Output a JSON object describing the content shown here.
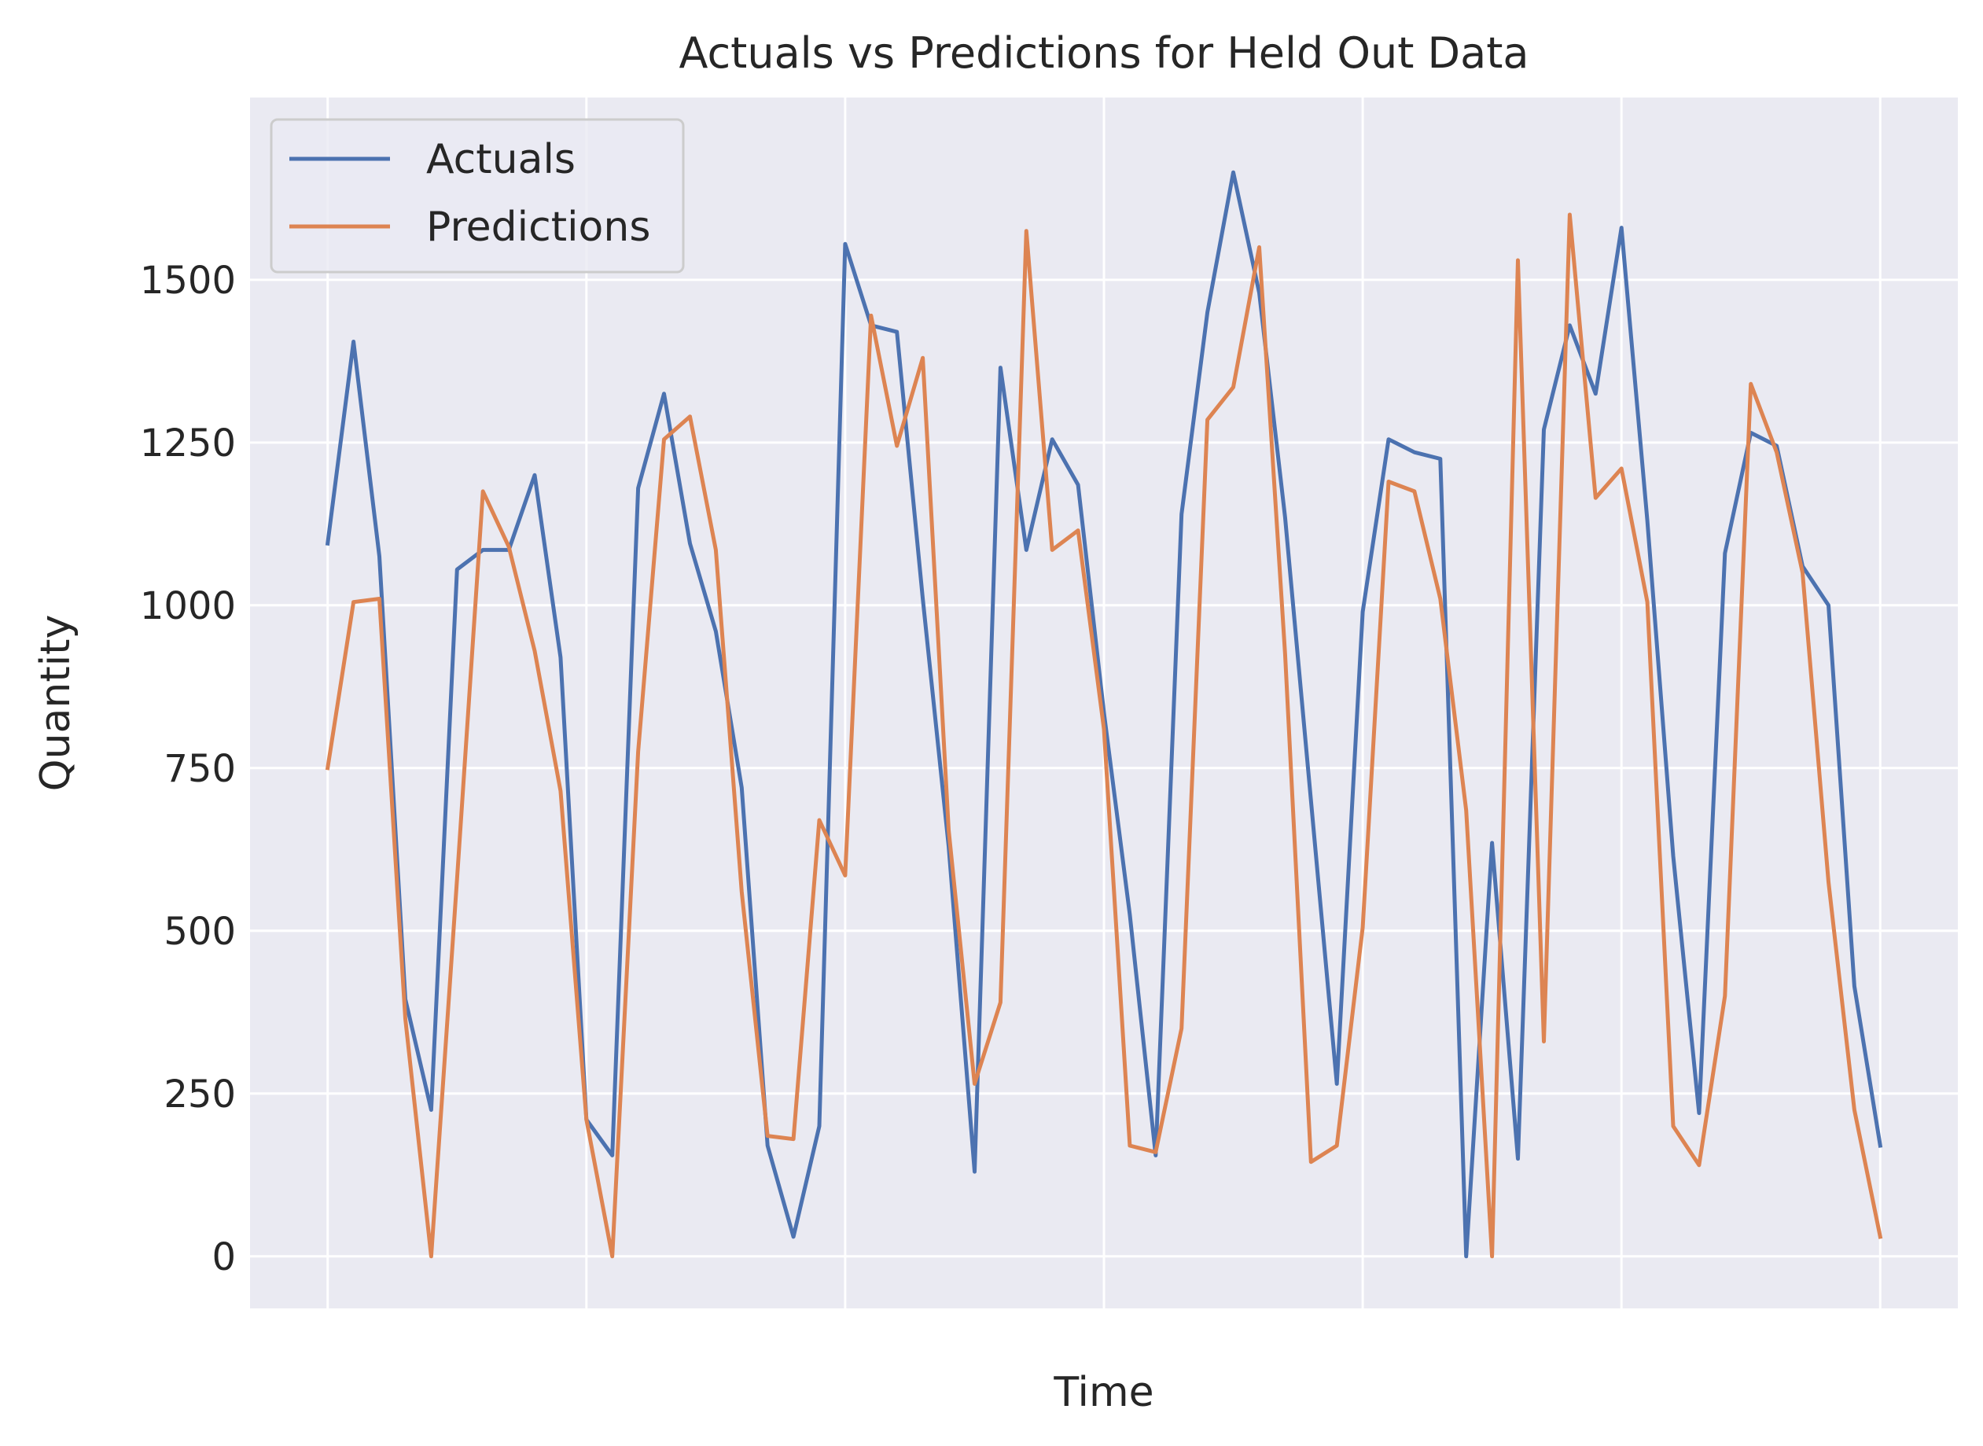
{
  "chart_data": {
    "type": "line",
    "title": "Actuals vs Predictions for Held Out Data",
    "xlabel": "Time",
    "ylabel": "Quantity",
    "ylim": [
      -80,
      1780
    ],
    "xlim": [
      -3,
      63
    ],
    "y_ticks": [
      0,
      250,
      500,
      750,
      1000,
      1250,
      1500
    ],
    "x_gridlines": [
      0,
      10,
      20,
      30,
      40,
      50,
      60
    ],
    "grid": true,
    "legend_position": "top-left",
    "background": "#EAEAF2",
    "x": [
      0,
      1,
      2,
      3,
      4,
      5,
      6,
      7,
      8,
      9,
      10,
      11,
      12,
      13,
      14,
      15,
      16,
      17,
      18,
      19,
      20,
      21,
      22,
      23,
      24,
      25,
      26,
      27,
      28,
      29,
      30,
      31,
      32,
      33,
      34,
      35,
      36,
      37,
      38,
      39,
      40,
      41,
      42,
      43,
      44,
      45,
      46,
      47,
      48,
      49,
      50,
      51,
      52,
      53,
      54,
      55,
      56,
      57,
      58,
      59,
      60
    ],
    "series": [
      {
        "name": "Actuals",
        "color": "#4C72B0",
        "values": [
          1095,
          1405,
          1075,
          395,
          225,
          1055,
          1085,
          1085,
          1200,
          920,
          210,
          155,
          1180,
          1325,
          1095,
          960,
          720,
          170,
          30,
          200,
          1555,
          1430,
          1420,
          1010,
          630,
          130,
          1365,
          1085,
          1255,
          1185,
          835,
          525,
          155,
          1140,
          1450,
          1665,
          1480,
          1135,
          700,
          265,
          990,
          1255,
          1235,
          1225,
          0,
          635,
          150,
          1270,
          1430,
          1325,
          1580,
          1130,
          615,
          220,
          1080,
          1265,
          1245,
          1060,
          1000,
          415,
          170
        ]
      },
      {
        "name": "Predictions",
        "color": "#DD8452",
        "values": [
          750,
          1005,
          1010,
          365,
          0,
          580,
          1175,
          1090,
          930,
          715,
          210,
          0,
          775,
          1255,
          1290,
          1085,
          560,
          185,
          180,
          670,
          585,
          1445,
          1245,
          1380,
          655,
          265,
          390,
          1575,
          1085,
          1115,
          810,
          170,
          160,
          350,
          1285,
          1335,
          1550,
          925,
          145,
          170,
          505,
          1190,
          1175,
          1010,
          685,
          0,
          1530,
          330,
          1600,
          1165,
          1210,
          1005,
          200,
          140,
          400,
          1340,
          1235,
          1050,
          575,
          225,
          30
        ]
      }
    ]
  }
}
